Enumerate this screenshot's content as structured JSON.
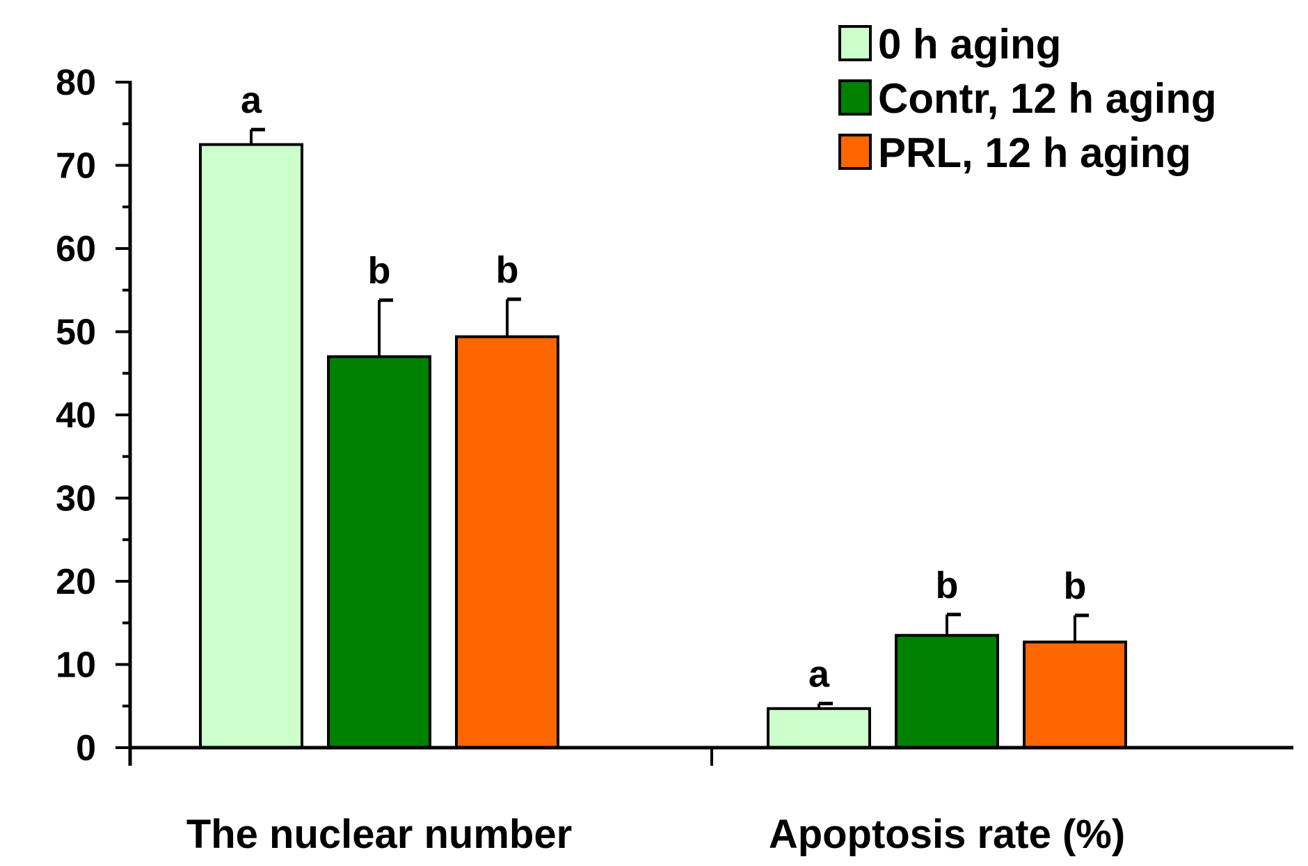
{
  "chart_data": {
    "type": "bar",
    "title": "",
    "xlabel": "",
    "ylabel": "",
    "ylim": [
      0,
      80
    ],
    "ytick_step": 10,
    "yticks": [
      "0",
      "10",
      "20",
      "30",
      "40",
      "50",
      "60",
      "70",
      "80"
    ],
    "grid": false,
    "legend_position": "top-right",
    "categories": [
      "The nuclear number",
      "Apoptosis rate (%)"
    ],
    "series": [
      {
        "name": "0 h aging",
        "color": "#ccffcc",
        "values": [
          72.5,
          4.7
        ],
        "errors": [
          1.8,
          0.6
        ],
        "significance": [
          "a",
          "a"
        ]
      },
      {
        "name": "Contr, 12 h aging",
        "color": "#008000",
        "values": [
          47,
          13.5
        ],
        "errors": [
          6.8,
          2.5
        ],
        "significance": [
          "b",
          "b"
        ]
      },
      {
        "name": "PRL, 12 h aging",
        "color": "#ff6600",
        "values": [
          49.4,
          12.7
        ],
        "errors": [
          4.5,
          3.2
        ],
        "significance": [
          "b",
          "b"
        ]
      }
    ]
  }
}
